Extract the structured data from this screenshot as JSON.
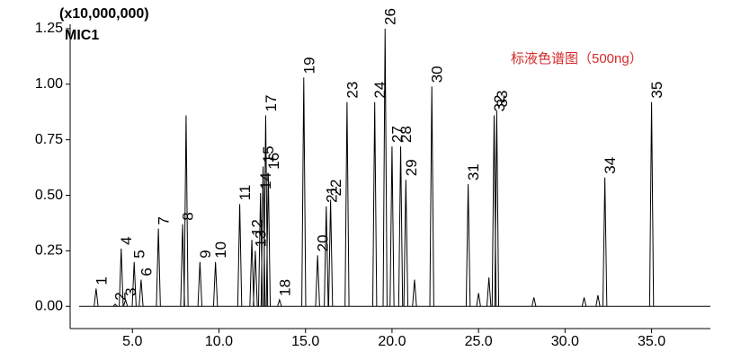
{
  "chart_data": {
    "type": "chromatogram",
    "y_multiplier": "(x10,000,000)",
    "channel": "MIC1",
    "annotation": "标液色谱图（500ng）",
    "color": "#000000",
    "x": [
      2.9,
      4.0,
      4.35,
      4.6,
      5.1,
      5.5,
      6.5,
      7.9,
      8.1,
      8.9,
      9.8,
      11.2,
      11.9,
      12.1,
      12.4,
      12.55,
      12.7,
      12.85,
      13.5,
      14.9,
      15.7,
      16.2,
      16.45,
      17.4,
      19.0,
      19.6,
      20.0,
      20.5,
      20.8,
      21.3,
      22.3,
      24.4,
      25.0,
      25.6,
      25.9,
      26.05,
      28.2,
      31.1,
      31.9,
      32.3,
      35.0
    ],
    "values": [
      0.08,
      0.01,
      0.26,
      0.03,
      0.2,
      0.12,
      0.35,
      0.37,
      0.86,
      0.2,
      0.2,
      0.46,
      0.3,
      0.25,
      0.51,
      0.63,
      0.86,
      0.6,
      0.03,
      1.03,
      0.23,
      0.45,
      0.48,
      0.92,
      0.92,
      1.25,
      0.72,
      0.72,
      0.57,
      0.12,
      0.99,
      0.55,
      0.06,
      0.13,
      0.86,
      0.88,
      0.04,
      0.04,
      0.05,
      0.58,
      0.92
    ],
    "peak_labels": [
      "1",
      "2",
      "4",
      "3",
      "5",
      "6",
      "7",
      "8",
      null,
      "9",
      "10",
      "11",
      "12",
      "13",
      "14",
      "15",
      "17",
      "16",
      "18",
      "19",
      "20",
      "21",
      "22",
      "23",
      "24",
      "26",
      "27",
      "28",
      "29",
      null,
      "30",
      "31",
      null,
      null,
      "32",
      "33",
      null,
      null,
      null,
      "34",
      "35"
    ],
    "xlim": [
      1.4,
      38.4
    ],
    "xticks": [
      {
        "value": 5,
        "label": "5.0"
      },
      {
        "value": 10,
        "label": "10.0"
      },
      {
        "value": 15,
        "label": "15.0"
      },
      {
        "value": 20,
        "label": "20.0"
      },
      {
        "value": 25,
        "label": "25.0"
      },
      {
        "value": 30,
        "label": "30.0"
      },
      {
        "value": 35,
        "label": "35.0"
      }
    ],
    "ylim": [
      -0.1,
      1.27
    ],
    "yticks": [
      {
        "value": 0,
        "label": "0.00"
      },
      {
        "value": 0.25,
        "label": "0.25"
      },
      {
        "value": 0.5,
        "label": "0.50"
      },
      {
        "value": 0.75,
        "label": "0.75"
      },
      {
        "value": 1.0,
        "label": "1.00"
      },
      {
        "value": 1.25,
        "label": "1.25"
      }
    ]
  }
}
